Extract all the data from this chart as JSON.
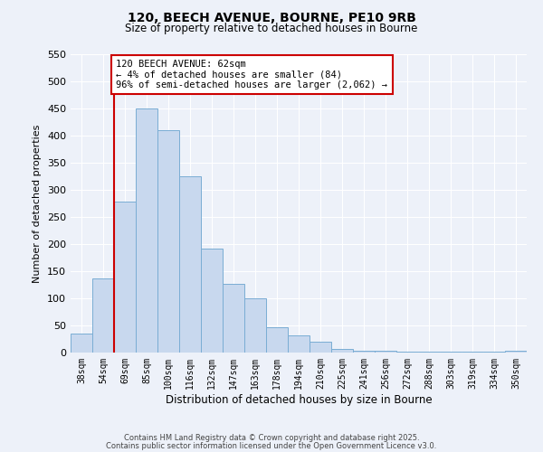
{
  "title": "120, BEECH AVENUE, BOURNE, PE10 9RB",
  "subtitle": "Size of property relative to detached houses in Bourne",
  "xlabel": "Distribution of detached houses by size in Bourne",
  "ylabel": "Number of detached properties",
  "categories": [
    "38sqm",
    "54sqm",
    "69sqm",
    "85sqm",
    "100sqm",
    "116sqm",
    "132sqm",
    "147sqm",
    "163sqm",
    "178sqm",
    "194sqm",
    "210sqm",
    "225sqm",
    "241sqm",
    "256sqm",
    "272sqm",
    "288sqm",
    "303sqm",
    "319sqm",
    "334sqm",
    "350sqm"
  ],
  "values": [
    35,
    137,
    278,
    450,
    410,
    325,
    192,
    127,
    100,
    46,
    31,
    20,
    6,
    3,
    3,
    2,
    2,
    1,
    1,
    1,
    4
  ],
  "bar_color": "#c8d8ee",
  "bar_edge_color": "#7aadd4",
  "vline_x": 1.5,
  "vline_color": "#cc0000",
  "annotation_text": "120 BEECH AVENUE: 62sqm\n← 4% of detached houses are smaller (84)\n96% of semi-detached houses are larger (2,062) →",
  "annotation_box_color": "#ffffff",
  "annotation_box_edge": "#cc0000",
  "ylim": [
    0,
    550
  ],
  "yticks": [
    0,
    50,
    100,
    150,
    200,
    250,
    300,
    350,
    400,
    450,
    500,
    550
  ],
  "background_color": "#edf1f9",
  "grid_color": "#ffffff",
  "footer1": "Contains HM Land Registry data © Crown copyright and database right 2025.",
  "footer2": "Contains public sector information licensed under the Open Government Licence v3.0."
}
